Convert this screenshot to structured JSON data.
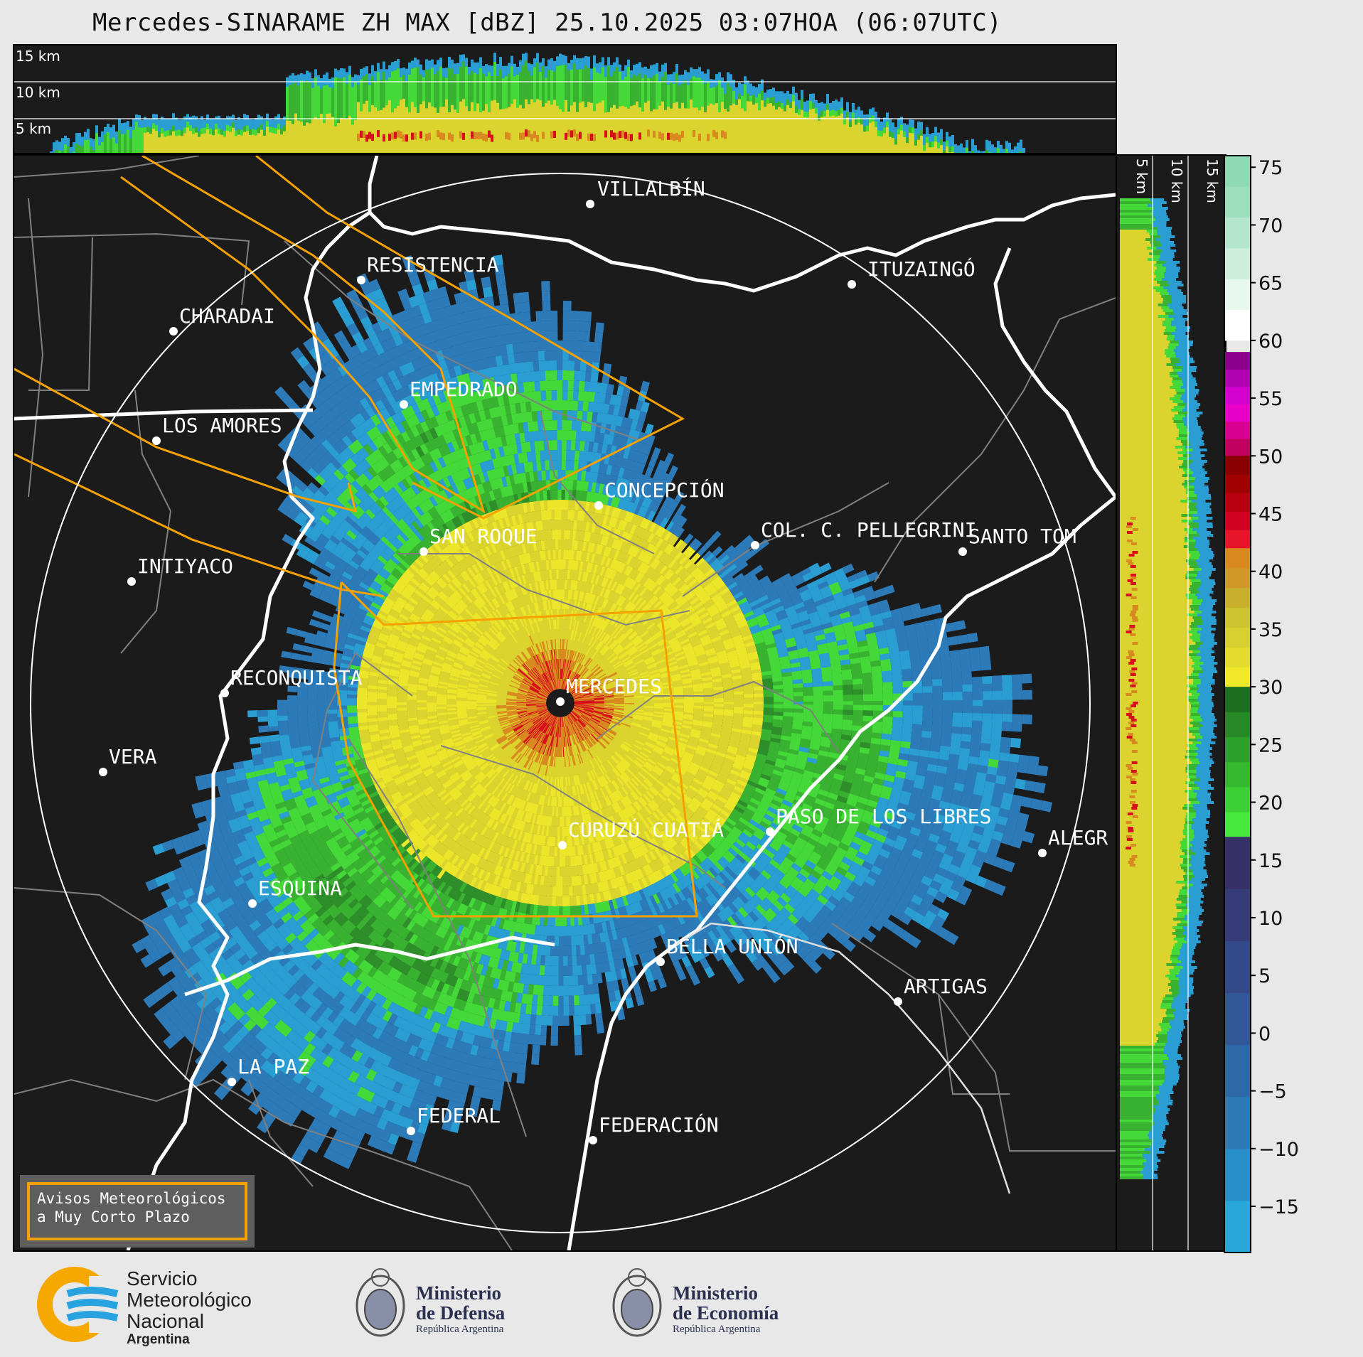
{
  "title": "Mercedes-SINARAME ZH MAX [dBZ] 25.10.2025 03:07HOA (06:07UTC)",
  "top_panel": {
    "height_labels": [
      "15 km",
      "10 km",
      "5 km"
    ]
  },
  "side_panel": {
    "height_labels": [
      "5 km",
      "10 km",
      "15 km"
    ]
  },
  "colorbar": {
    "unit": "dBZ",
    "ticks": [
      "75",
      "70",
      "65",
      "60",
      "55",
      "50",
      "45",
      "40",
      "35",
      "30",
      "25",
      "20",
      "15",
      "10",
      "5",
      "0",
      "−5",
      "−10",
      "−15"
    ],
    "range": [
      -19,
      76
    ],
    "bands": [
      {
        "from": 60,
        "to": 76,
        "colors": [
          "#ffffff",
          "#e6f7ee",
          "#cdeedd",
          "#b4e6cd",
          "#9cdebe",
          "#8fd9b5"
        ]
      },
      {
        "from": 50,
        "to": 59,
        "colors": [
          "#c20060",
          "#d8008f",
          "#e800c8",
          "#d400d0",
          "#b000b0",
          "#8c008c"
        ]
      },
      {
        "from": 42,
        "to": 50,
        "colors": [
          "#e8142a",
          "#d00020",
          "#b80010",
          "#a00000",
          "#8a0000"
        ]
      },
      {
        "from": 30,
        "to": 42,
        "colors": [
          "#f0e828",
          "#e4dc2c",
          "#d8d030",
          "#ccc430",
          "#c8b02c",
          "#d09828",
          "#d88a20"
        ]
      },
      {
        "from": 17,
        "to": 30,
        "colors": [
          "#46e83c",
          "#3cd034",
          "#34b830",
          "#2ea02c",
          "#268826",
          "#1e7020"
        ]
      },
      {
        "from": -19,
        "to": 17,
        "colors": [
          "#28a8d8",
          "#2890c8",
          "#2c7ab8",
          "#2e68a8",
          "#325898",
          "#344a88",
          "#363c78",
          "#383068"
        ]
      }
    ]
  },
  "places": [
    {
      "name": "VILLALBÍN"
    },
    {
      "name": "RESISTENCIA"
    },
    {
      "name": "CHARADAI"
    },
    {
      "name": "ITUZAINGÓ"
    },
    {
      "name": "EMPEDRADO"
    },
    {
      "name": "LOS AMORES"
    },
    {
      "name": "CONCEPCIÓN"
    },
    {
      "name": "SAN ROQUE"
    },
    {
      "name": "COL. C. PELLEGRINI"
    },
    {
      "name": "SANTO TOM"
    },
    {
      "name": "INTIYACO"
    },
    {
      "name": "MERCEDES"
    },
    {
      "name": "RECONQUISTA"
    },
    {
      "name": "VERA"
    },
    {
      "name": "CURUZÚ CUATIÁ"
    },
    {
      "name": "PASO DE LOS LIBRES"
    },
    {
      "name": "ALEGR"
    },
    {
      "name": "ESQUINA"
    },
    {
      "name": "BELLA UNIÓN"
    },
    {
      "name": "ARTIGAS"
    },
    {
      "name": "LA PAZ"
    },
    {
      "name": "FEDERAL"
    },
    {
      "name": "FEDERACIÓN"
    }
  ],
  "warning_box": {
    "line1": "Avisos Meteorológicos",
    "line2": "a Muy Corto Plazo",
    "color": "#f5a100"
  },
  "footer": {
    "smn": {
      "line1": "Servicio",
      "line2": "Meteorológico",
      "line3": "Nacional",
      "line4": "Argentina",
      "icon": "smn-logo-icon"
    },
    "defensa": {
      "line1": "Ministerio",
      "line2": "de Defensa",
      "line3": "República Argentina",
      "icon": "coat-of-arms-icon"
    },
    "economia": {
      "line1": "Ministerio",
      "line2": "de Economía",
      "line3": "República Argentina",
      "icon": "coat-of-arms-icon"
    }
  },
  "colors": {
    "background": "#1b1b1b",
    "warning_polygon": "#f5a100",
    "river": "#ffffff",
    "border": "#808080"
  }
}
